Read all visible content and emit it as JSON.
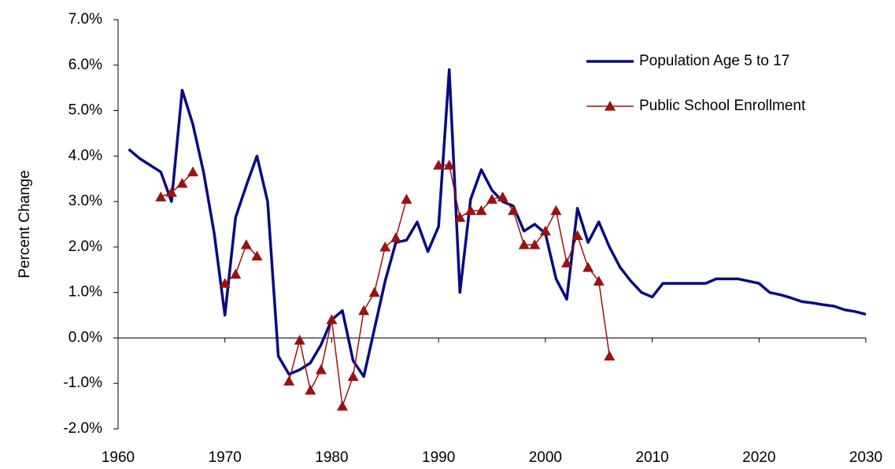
{
  "chart_data": {
    "type": "line",
    "y_label": "Percent Change",
    "x": [
      1961,
      1962,
      1963,
      1964,
      1965,
      1966,
      1967,
      1968,
      1969,
      1970,
      1971,
      1972,
      1973,
      1974,
      1975,
      1976,
      1977,
      1978,
      1979,
      1980,
      1981,
      1982,
      1983,
      1984,
      1985,
      1986,
      1987,
      1988,
      1989,
      1990,
      1991,
      1992,
      1993,
      1994,
      1995,
      1996,
      1997,
      1998,
      1999,
      2000,
      2001,
      2002,
      2003,
      2004,
      2005,
      2006,
      2007,
      2008,
      2009,
      2010,
      2011,
      2012,
      2013,
      2014,
      2015,
      2016,
      2017,
      2018,
      2019,
      2020,
      2021,
      2022,
      2023,
      2024,
      2025,
      2026,
      2027,
      2028,
      2029,
      2030
    ],
    "series": [
      {
        "name": "Population Age 5 to 17",
        "color": "#0a0a80",
        "marker": "none",
        "values": [
          4.15,
          3.95,
          3.8,
          3.65,
          3.0,
          5.45,
          4.7,
          3.65,
          2.3,
          0.5,
          2.65,
          3.35,
          4.0,
          3.0,
          -0.4,
          -0.8,
          -0.7,
          -0.55,
          -0.15,
          0.4,
          0.6,
          -0.5,
          -0.85,
          0.2,
          1.25,
          2.1,
          2.15,
          2.55,
          1.9,
          2.45,
          5.9,
          1.0,
          3.05,
          3.7,
          3.25,
          3.0,
          2.9,
          2.35,
          2.5,
          2.3,
          1.3,
          0.85,
          2.85,
          2.1,
          2.55,
          2.0,
          1.55,
          1.25,
          1.0,
          0.9,
          1.2,
          1.2,
          1.2,
          1.2,
          1.2,
          1.3,
          1.3,
          1.3,
          1.25,
          1.2,
          1.0,
          0.95,
          0.88,
          0.8,
          0.77,
          0.73,
          0.7,
          0.62,
          0.58,
          0.52
        ]
      },
      {
        "name": "Public School Enrollment",
        "color": "#9b1111",
        "marker": "triangle",
        "values": [
          null,
          null,
          null,
          3.1,
          3.2,
          3.4,
          3.65,
          null,
          null,
          1.2,
          1.4,
          2.05,
          1.8,
          null,
          null,
          -0.95,
          -0.05,
          -1.15,
          -0.7,
          0.4,
          -1.5,
          -0.85,
          0.6,
          1.0,
          2.0,
          2.2,
          3.05,
          null,
          null,
          3.8,
          3.8,
          2.65,
          2.8,
          2.8,
          3.05,
          3.1,
          2.8,
          2.05,
          2.05,
          2.35,
          2.8,
          1.65,
          2.25,
          1.55,
          1.25,
          -0.4,
          null,
          null,
          null,
          null,
          null,
          null,
          null,
          null,
          null,
          null,
          null,
          null,
          null,
          null,
          null,
          null,
          null,
          null,
          null,
          null,
          null,
          null,
          null,
          null
        ]
      }
    ],
    "xlim": [
      1960,
      2030
    ],
    "xticks": [
      1960,
      1970,
      1980,
      1990,
      2000,
      2010,
      2020,
      2030
    ],
    "ylim": [
      -2,
      7
    ],
    "yticks": [
      {
        "value": -2,
        "label": "-2.0%"
      },
      {
        "value": -1,
        "label": "-1.0%"
      },
      {
        "value": 0,
        "label": "0.0%"
      },
      {
        "value": 1,
        "label": "1.0%"
      },
      {
        "value": 2,
        "label": "2.0%"
      },
      {
        "value": 3,
        "label": "3.0%"
      },
      {
        "value": 4,
        "label": "4.0%"
      },
      {
        "value": 5,
        "label": "5.0%"
      },
      {
        "value": 6,
        "label": "6.0%"
      },
      {
        "value": 7,
        "label": "7.0%"
      }
    ],
    "grid": false,
    "legend": "upper right"
  }
}
